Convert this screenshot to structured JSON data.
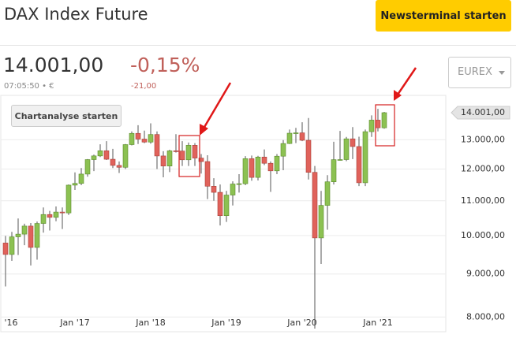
{
  "header": {
    "title": "DAX Index Future",
    "button": "Newsterminal starten"
  },
  "quote": {
    "price": "14.001,00",
    "change_percent": "-0,15%",
    "time": "07:05:50 • €",
    "change": "-21,00",
    "exchange": "EUREX"
  },
  "chart_button": "Chartanalyse starten",
  "chart_data": {
    "type": "candlestick",
    "log_scale": true,
    "grid": true,
    "up_color": "#8cc152",
    "down_color": "#e0625b",
    "categories": [
      "'16",
      null,
      null,
      null,
      null,
      null,
      null,
      null,
      null,
      null,
      null,
      null,
      "Jan '17",
      null,
      null,
      null,
      null,
      null,
      null,
      null,
      null,
      null,
      null,
      null,
      "Jan '18",
      null,
      null,
      null,
      null,
      null,
      null,
      null,
      null,
      null,
      null,
      null,
      "Jan '19",
      null,
      null,
      null,
      null,
      null,
      null,
      null,
      null,
      null,
      null,
      null,
      "Jan '20",
      null,
      null,
      null,
      null,
      null,
      null,
      null,
      null,
      null,
      null,
      null,
      "Jan '21",
      null
    ],
    "open": [
      null,
      9798,
      9495,
      9965,
      10039,
      10263,
      9680,
      10337,
      10593,
      10511,
      10665,
      10640,
      11481,
      11535,
      11834,
      12313,
      12438,
      12615,
      12325,
      12118,
      12056,
      12829,
      13230,
      13024,
      12918,
      13189,
      12436,
      12097,
      12612,
      12605,
      12306,
      12806,
      12364,
      12247,
      11447,
      11257,
      10559,
      11173,
      11516,
      11526,
      12344,
      11727,
      12399,
      12189,
      11939,
      12428,
      12867,
      13236,
      13249,
      12982,
      11890,
      9936,
      10862,
      11586,
      12311,
      12313,
      13033,
      12761,
      11556,
      13291,
      13719,
      13433
    ],
    "high": [
      null,
      9990,
      10100,
      10480,
      10330,
      10350,
      10390,
      10800,
      10700,
      10830,
      10800,
      11500,
      11890,
      12030,
      12330,
      12480,
      12840,
      12950,
      12680,
      12250,
      12850,
      13300,
      13530,
      13330,
      13600,
      13300,
      12600,
      12650,
      13200,
      12950,
      12900,
      12880,
      12500,
      12460,
      11700,
      11500,
      11300,
      11600,
      11830,
      12430,
      12450,
      12440,
      12660,
      12250,
      12500,
      12990,
      13370,
      13430,
      13640,
      13800,
      12100,
      11300,
      11800,
      12930,
      13320,
      13100,
      13460,
      13110,
      13370,
      13900,
      14150,
      14030
    ],
    "low": [
      null,
      8699,
      9330,
      9480,
      9740,
      9214,
      9360,
      10080,
      10140,
      10400,
      10180,
      10580,
      11330,
      11480,
      11750,
      11930,
      12400,
      12300,
      12030,
      11870,
      12000,
      12800,
      12850,
      12880,
      12860,
      12000,
      11730,
      11900,
      12550,
      12100,
      12100,
      12100,
      11850,
      11050,
      11000,
      10280,
      10380,
      10860,
      11250,
      11480,
      11620,
      11630,
      12130,
      11270,
      11830,
      11960,
      12850,
      12880,
      12950,
      11660,
      7750,
      9250,
      10160,
      11500,
      12280,
      12260,
      12330,
      11450,
      11450,
      13100,
      13300,
      13400
    ],
    "close": [
      null,
      9495,
      9965,
      10039,
      10263,
      9680,
      10337,
      10593,
      10511,
      10665,
      10640,
      11481,
      11535,
      11834,
      12313,
      12438,
      12615,
      12325,
      12118,
      12056,
      12829,
      13230,
      13024,
      12918,
      13189,
      12436,
      12097,
      12612,
      12605,
      12306,
      12806,
      12364,
      12247,
      11447,
      11257,
      10559,
      11173,
      11516,
      11526,
      12344,
      11727,
      12399,
      12189,
      11939,
      12428,
      12867,
      13236,
      13249,
      12982,
      11890,
      9936,
      10862,
      11586,
      12311,
      12313,
      13033,
      12761,
      11556,
      13291,
      13719,
      13433,
      14001
    ],
    "ylim": [
      7700,
      14650
    ],
    "yticks": [
      {
        "value": 8000,
        "label": "8.000,00"
      },
      {
        "value": 9000,
        "label": "9.000,00"
      },
      {
        "value": 10000,
        "label": "10.000,00"
      },
      {
        "value": 11000,
        "label": "11.000,00"
      },
      {
        "value": 12000,
        "label": "12.000,00"
      },
      {
        "value": 13000,
        "label": "13.000,00"
      }
    ],
    "last_price": {
      "value": 14001,
      "label": "14.001,00"
    }
  }
}
